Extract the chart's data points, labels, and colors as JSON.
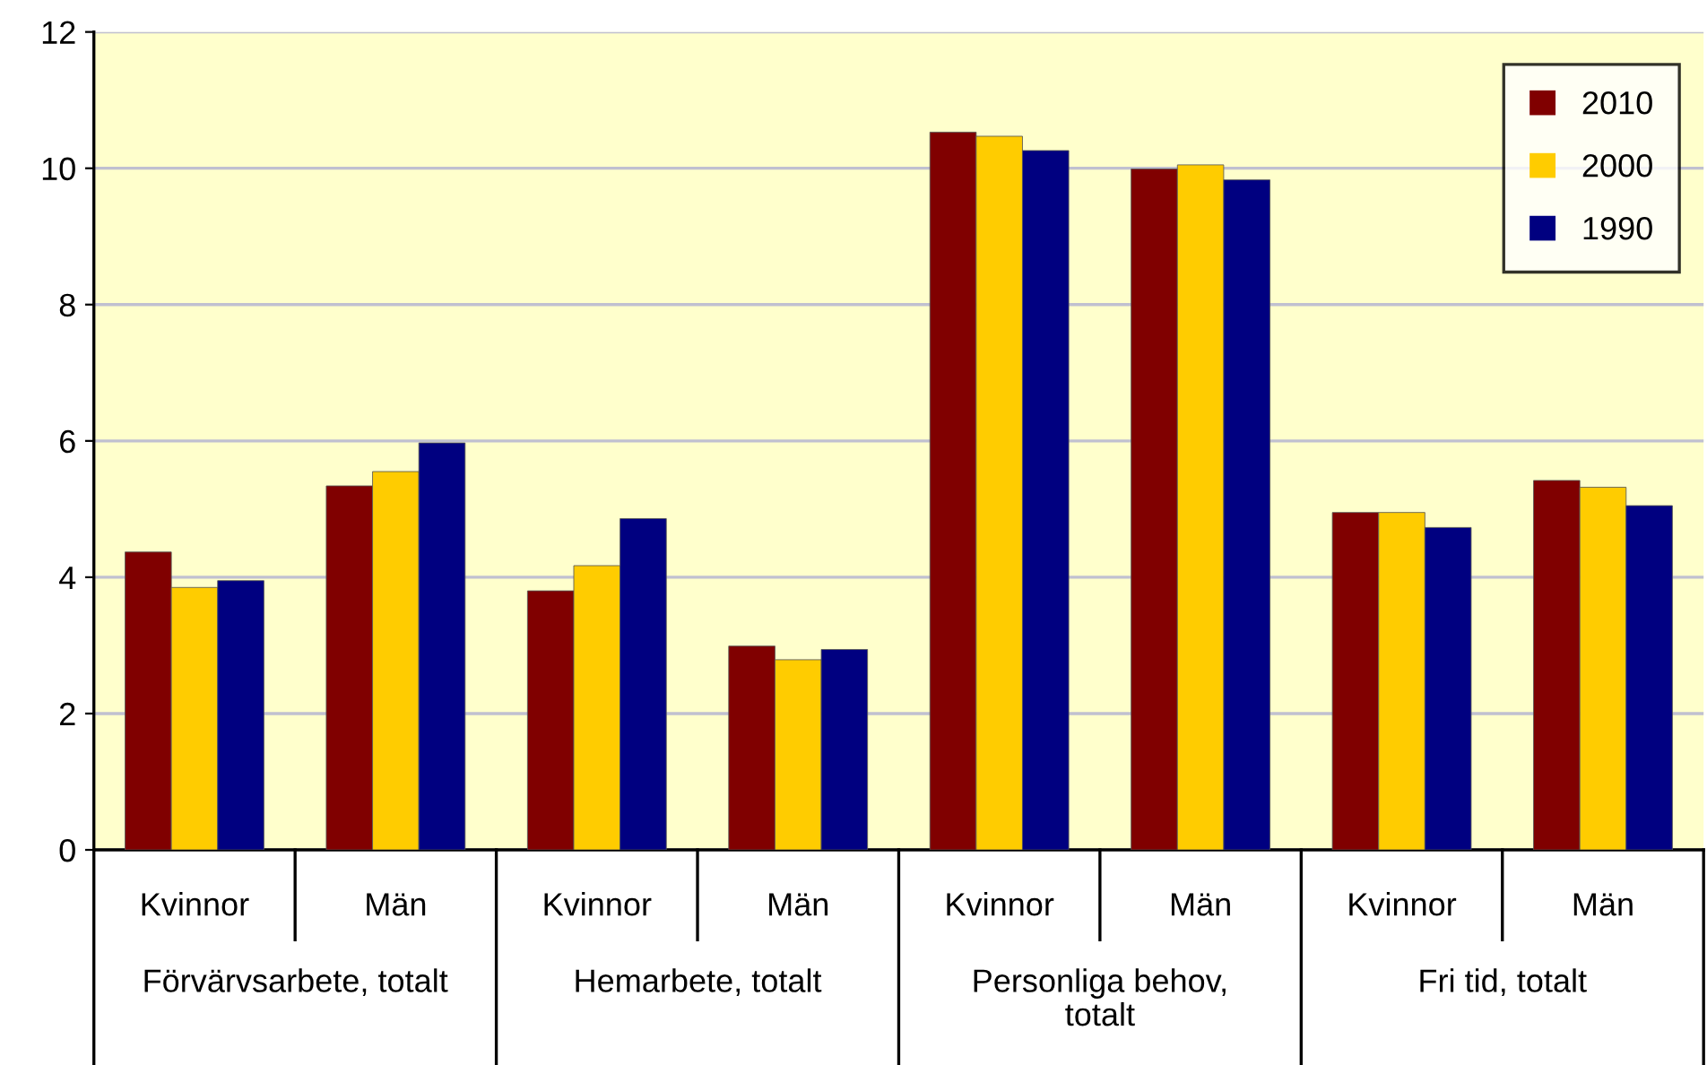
{
  "chart_data": {
    "type": "bar",
    "categories": [
      "Kvinnor",
      "Män",
      "Kvinnor",
      "Män",
      "Kvinnor",
      "Män",
      "Kvinnor",
      "Män"
    ],
    "series": [
      {
        "name": "2010",
        "color": "#800000",
        "values": [
          4.37,
          5.34,
          3.8,
          2.99,
          10.53,
          9.99,
          4.95,
          5.42
        ]
      },
      {
        "name": "2000",
        "color": "#ffcc00",
        "values": [
          3.85,
          5.55,
          4.17,
          2.79,
          10.47,
          10.05,
          4.95,
          5.32
        ]
      },
      {
        "name": "1990",
        "color": "#000080",
        "values": [
          3.95,
          5.97,
          4.86,
          2.94,
          10.26,
          9.83,
          4.73,
          5.05
        ]
      }
    ],
    "annotations": [
      "Förvärvsarbete, totalt",
      "Hemarbete, totalt",
      "Personliga behov,\ntotalt",
      "Fri tid, totalt"
    ],
    "ylim": [
      0,
      12
    ],
    "yticks": [
      0,
      2,
      4,
      6,
      8,
      10,
      12
    ],
    "grid": "y",
    "legend": "top right"
  }
}
